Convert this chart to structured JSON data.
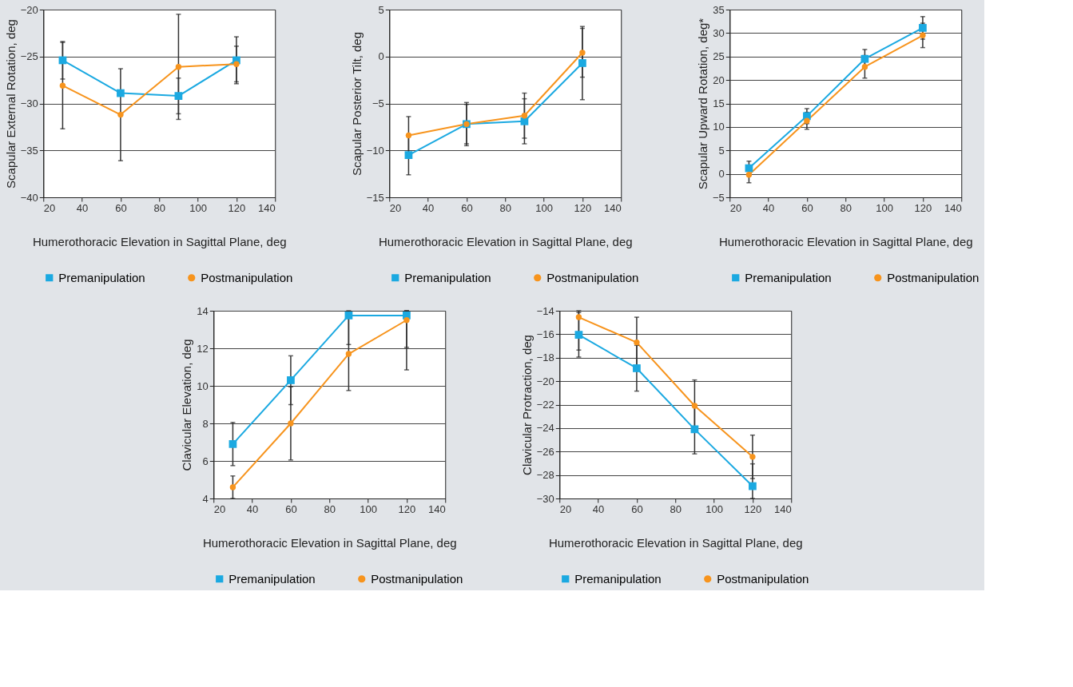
{
  "chart_data": [
    {
      "type": "line",
      "xlabel": "Humerothoracic Elevation in Sagittal Plane, deg",
      "ylabel": "Scapular External Rotation, deg",
      "x": [
        30,
        60,
        90,
        120
      ],
      "xlim": [
        20,
        140
      ],
      "xticks": [
        20,
        40,
        60,
        80,
        100,
        120,
        140
      ],
      "ylim": [
        -40,
        -20
      ],
      "yticks": [
        -40,
        -35,
        -30,
        -25,
        -20
      ],
      "grid": "y",
      "legend": "bottom",
      "line_style": "solid",
      "series": [
        {
          "name": "Premanipulation",
          "color": "#1ba9e1",
          "marker": "square",
          "values": [
            -25.4,
            -28.9,
            -29.2,
            -25.4
          ],
          "errors": [
            2.0,
            null,
            1.9,
            2.5
          ]
        },
        {
          "name": "Postmanipulation",
          "color": "#f7941d",
          "marker": "circle",
          "values": [
            -28.1,
            -31.2,
            -26.1,
            -25.8
          ],
          "errors": [
            4.6,
            4.9,
            5.6,
            1.9
          ]
        }
      ]
    },
    {
      "type": "line",
      "xlabel": "Humerothoracic Elevation in Sagittal Plane, deg",
      "ylabel": "Scapular Posterior Tilt, deg",
      "x": [
        30,
        60,
        90,
        120
      ],
      "xlim": [
        20,
        140
      ],
      "xticks": [
        20,
        40,
        60,
        80,
        100,
        120,
        140
      ],
      "ylim": [
        -15,
        5
      ],
      "yticks": [
        -15,
        -10,
        -5,
        0,
        5
      ],
      "grid": "y",
      "legend": "bottom",
      "line_style": "solid",
      "series": [
        {
          "name": "Premanipulation",
          "color": "#1ba9e1",
          "marker": "square",
          "values": [
            -10.5,
            -7.2,
            -6.9,
            -0.7
          ],
          "errors": [
            2.1,
            2.3,
            2.4,
            3.9
          ]
        },
        {
          "name": "Postmanipulation",
          "color": "#f7941d",
          "marker": "circle",
          "values": [
            -8.4,
            -7.2,
            -6.3,
            0.4
          ],
          "errors": [
            2.0,
            2.1,
            2.4,
            2.6
          ]
        }
      ]
    },
    {
      "type": "line",
      "xlabel": "Humerothoracic Elevation in Sagittal Plane, deg",
      "ylabel": "Scapular Upward Rotation, deg*",
      "x": [
        30,
        60,
        90,
        120
      ],
      "xlim": [
        20,
        140
      ],
      "xticks": [
        20,
        40,
        60,
        80,
        100,
        120,
        140
      ],
      "ylim": [
        -5,
        35
      ],
      "yticks": [
        -5,
        0,
        5,
        10,
        15,
        20,
        25,
        30,
        35
      ],
      "grid": "y",
      "legend": "bottom",
      "line_style": "solid",
      "series": [
        {
          "name": "Premanipulation",
          "color": "#1ba9e1",
          "marker": "square",
          "values": [
            1.2,
            12.3,
            24.5,
            31.1
          ],
          "errors": [
            1.5,
            1.6,
            2.0,
            2.4
          ]
        },
        {
          "name": "Postmanipulation",
          "color": "#f7941d",
          "marker": "circle",
          "values": [
            -0.2,
            11.3,
            22.8,
            29.5
          ],
          "errors": [
            1.7,
            1.8,
            2.4,
            2.6
          ]
        }
      ]
    },
    {
      "type": "line",
      "xlabel": "Humerothoracic Elevation in Sagittal Plane, deg",
      "ylabel": "Clavicular Elevation, deg",
      "x": [
        30,
        60,
        90,
        120
      ],
      "xlim": [
        20,
        140
      ],
      "xticks": [
        20,
        40,
        60,
        80,
        100,
        120,
        140
      ],
      "ylim": [
        4,
        14
      ],
      "yticks": [
        4,
        6,
        8,
        10,
        12,
        14
      ],
      "grid": "y",
      "legend": "bottom",
      "line_style": "solid",
      "series": [
        {
          "name": "Premanipulation",
          "color": "#1ba9e1",
          "marker": "square",
          "values": [
            6.9,
            10.3,
            13.75,
            13.75
          ],
          "errors": [
            1.15,
            1.3,
            [
              12.2,
              14
            ],
            [
              12.05,
              14
            ]
          ]
        },
        {
          "name": "Postmanipulation",
          "color": "#f7941d",
          "marker": "circle",
          "values": [
            4.6,
            8.0,
            11.7,
            13.5
          ],
          "errors": [
            0.6,
            1.95,
            1.95,
            [
              10.85,
              14
            ]
          ]
        }
      ]
    },
    {
      "type": "line",
      "xlabel": "Humerothoracic Elevation in Sagittal Plane, deg",
      "ylabel": "Clavicular Protraction, deg",
      "x": [
        30,
        60,
        90,
        120
      ],
      "xlim": [
        20,
        140
      ],
      "xticks": [
        20,
        40,
        60,
        80,
        100,
        120,
        140
      ],
      "ylim": [
        -30,
        -14
      ],
      "yticks": [
        -30,
        -28,
        -26,
        -24,
        -22,
        -20,
        -18,
        -16,
        -14
      ],
      "grid": "y",
      "legend": "bottom",
      "line_style": "solid",
      "series": [
        {
          "name": "Premanipulation",
          "color": "#1ba9e1",
          "marker": "square",
          "values": [
            -16.05,
            -18.9,
            -24.1,
            -28.95
          ],
          "errors": [
            1.9,
            1.95,
            2.1,
            [
              -30,
              -27.05
            ]
          ]
        },
        {
          "name": "Postmanipulation",
          "color": "#f7941d",
          "marker": "circle",
          "values": [
            -14.55,
            -16.7,
            -22.1,
            -26.45
          ],
          "errors": [
            [
              -17.35,
              -14
            ],
            2.15,
            2.2,
            1.85
          ]
        }
      ]
    }
  ]
}
